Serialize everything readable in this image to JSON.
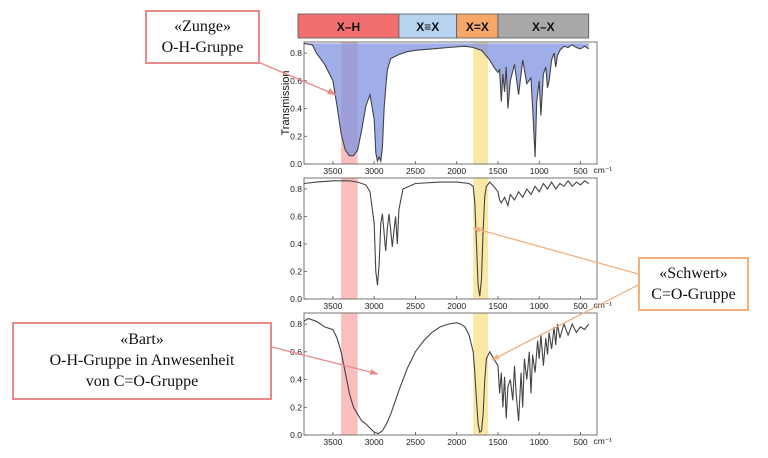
{
  "chart_data": {
    "type": "line",
    "categories_bar": [
      {
        "label": "X–H",
        "from": 4000,
        "to": 2700,
        "color": "#f26f6f"
      },
      {
        "label": "X≡X",
        "from": 2700,
        "to": 2000,
        "color": "#b6d4f0"
      },
      {
        "label": "X=X",
        "from": 2000,
        "to": 1500,
        "color": "#f5a86a"
      },
      {
        "label": "X–X",
        "from": 1500,
        "to": 400,
        "color": "#a9a9a9"
      }
    ],
    "highlight_bands": [
      {
        "from": 3400,
        "to": 3200,
        "color": "#f7a8a8"
      },
      {
        "from": 1800,
        "to": 1620,
        "color": "#f8e08a"
      }
    ],
    "ylabel": "Transmission",
    "x_unit": "cm⁻¹",
    "x_ticks": [
      3500,
      3000,
      2500,
      2000,
      1500,
      1000,
      500
    ],
    "y_ticks": [
      0.0,
      0.2,
      0.4,
      0.6,
      0.8
    ],
    "xlim": [
      3850,
      300
    ],
    "ylim": [
      0,
      0.88
    ],
    "panels": [
      {
        "series": [
          {
            "name": "",
            "x": [
              3850,
              3750,
              3700,
              3600,
              3500,
              3450,
              3400,
              3350,
              3300,
              3250,
              3200,
              3150,
              3100,
              3050,
              3000,
              2980,
              2960,
              2940,
              2920,
              2900,
              2880,
              2860,
              2840,
              2800,
              2700,
              2600,
              2500,
              2300,
              2100,
              1900,
              1800,
              1700,
              1600,
              1550,
              1500,
              1480,
              1460,
              1440,
              1420,
              1400,
              1380,
              1350,
              1300,
              1250,
              1200,
              1150,
              1100,
              1070,
              1050,
              1030,
              1000,
              980,
              950,
              920,
              900,
              880,
              850,
              820,
              800,
              780,
              750,
              700,
              650,
              600,
              550,
              500,
              450,
              400
            ],
            "y": [
              0.87,
              0.86,
              0.8,
              0.72,
              0.6,
              0.42,
              0.22,
              0.1,
              0.06,
              0.06,
              0.1,
              0.25,
              0.42,
              0.5,
              0.32,
              0.08,
              0.02,
              0.05,
              0.02,
              0.12,
              0.4,
              0.55,
              0.68,
              0.76,
              0.79,
              0.81,
              0.82,
              0.83,
              0.84,
              0.85,
              0.84,
              0.82,
              0.75,
              0.7,
              0.66,
              0.68,
              0.45,
              0.65,
              0.52,
              0.7,
              0.4,
              0.6,
              0.72,
              0.5,
              0.75,
              0.58,
              0.62,
              0.3,
              0.05,
              0.45,
              0.6,
              0.35,
              0.65,
              0.7,
              0.55,
              0.6,
              0.75,
              0.8,
              0.7,
              0.78,
              0.82,
              0.85,
              0.84,
              0.86,
              0.84,
              0.83,
              0.85,
              0.83
            ]
          }
        ],
        "fill_reference_y": 0.87
      },
      {
        "series": [
          {
            "name": "",
            "x": [
              3850,
              3700,
              3500,
              3300,
              3200,
              3100,
              3050,
              3000,
              2980,
              2960,
              2940,
              2920,
              2900,
              2880,
              2860,
              2840,
              2820,
              2800,
              2780,
              2760,
              2740,
              2720,
              2700,
              2650,
              2500,
              2200,
              2000,
              1850,
              1800,
              1780,
              1760,
              1740,
              1720,
              1700,
              1680,
              1660,
              1640,
              1600,
              1550,
              1500,
              1480,
              1460,
              1420,
              1380,
              1350,
              1300,
              1250,
              1200,
              1150,
              1100,
              1050,
              1000,
              950,
              900,
              850,
              800,
              750,
              700,
              650,
              600,
              550,
              500,
              450,
              400
            ],
            "y": [
              0.84,
              0.85,
              0.86,
              0.86,
              0.85,
              0.83,
              0.78,
              0.55,
              0.2,
              0.1,
              0.25,
              0.55,
              0.62,
              0.48,
              0.35,
              0.52,
              0.62,
              0.5,
              0.38,
              0.5,
              0.6,
              0.4,
              0.65,
              0.8,
              0.84,
              0.85,
              0.85,
              0.84,
              0.82,
              0.7,
              0.4,
              0.1,
              0.02,
              0.15,
              0.5,
              0.75,
              0.82,
              0.85,
              0.82,
              0.78,
              0.72,
              0.7,
              0.74,
              0.68,
              0.76,
              0.72,
              0.78,
              0.74,
              0.8,
              0.76,
              0.82,
              0.78,
              0.84,
              0.8,
              0.85,
              0.8,
              0.84,
              0.82,
              0.86,
              0.82,
              0.85,
              0.83,
              0.86,
              0.84
            ]
          }
        ],
        "fill_reference_y": null
      },
      {
        "series": [
          {
            "name": "",
            "x": [
              3850,
              3800,
              3700,
              3600,
              3500,
              3450,
              3400,
              3350,
              3300,
              3250,
              3200,
              3150,
              3100,
              3050,
              3000,
              2950,
              2900,
              2850,
              2800,
              2700,
              2600,
              2500,
              2400,
              2300,
              2200,
              2100,
              2000,
              1950,
              1900,
              1850,
              1800,
              1780,
              1760,
              1740,
              1720,
              1700,
              1680,
              1660,
              1640,
              1600,
              1550,
              1500,
              1480,
              1460,
              1440,
              1420,
              1400,
              1380,
              1350,
              1320,
              1300,
              1280,
              1250,
              1220,
              1200,
              1180,
              1150,
              1120,
              1100,
              1080,
              1050,
              1020,
              1000,
              980,
              950,
              920,
              900,
              880,
              850,
              820,
              800,
              780,
              750,
              720,
              700,
              650,
              600,
              550,
              500,
              450,
              400
            ],
            "y": [
              0.82,
              0.84,
              0.82,
              0.78,
              0.76,
              0.7,
              0.6,
              0.45,
              0.3,
              0.2,
              0.15,
              0.1,
              0.08,
              0.05,
              0.02,
              0.01,
              0.03,
              0.08,
              0.15,
              0.32,
              0.48,
              0.6,
              0.68,
              0.74,
              0.78,
              0.8,
              0.81,
              0.8,
              0.78,
              0.72,
              0.6,
              0.45,
              0.25,
              0.08,
              0.02,
              0.03,
              0.15,
              0.4,
              0.55,
              0.6,
              0.55,
              0.5,
              0.3,
              0.45,
              0.2,
              0.42,
              0.12,
              0.35,
              0.4,
              0.25,
              0.5,
              0.3,
              0.1,
              0.45,
              0.2,
              0.55,
              0.4,
              0.6,
              0.3,
              0.58,
              0.45,
              0.68,
              0.55,
              0.72,
              0.5,
              0.7,
              0.58,
              0.74,
              0.62,
              0.78,
              0.65,
              0.8,
              0.7,
              0.76,
              0.8,
              0.72,
              0.8,
              0.74,
              0.78,
              0.76,
              0.8
            ]
          }
        ],
        "fill_reference_y": null
      }
    ]
  },
  "callouts": {
    "zunge": {
      "line1": "«Zunge»",
      "line2": "O-H-Gruppe"
    },
    "schwert": {
      "line1": "«Schwert»",
      "line2": "C=O-Gruppe"
    },
    "bart": {
      "line1": "«Bart»",
      "line2": "O-H-Gruppe in Anwesenheit",
      "line3": "von C=O-Gruppe"
    }
  },
  "colors": {
    "callout_red": "#e88a8a",
    "callout_orange": "#f2b07d",
    "fill_blue": "#7f93e0",
    "spectrum_line": "#444444"
  }
}
